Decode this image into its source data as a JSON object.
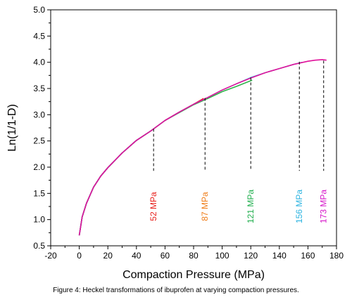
{
  "chart_data": {
    "type": "line",
    "xlabel": "Compaction Pressure (MPa)",
    "ylabel": "Ln(1/1-D)",
    "xlim": [
      -20,
      180
    ],
    "ylim": [
      0.5,
      5.0
    ],
    "x_ticks": [
      -20,
      0,
      20,
      40,
      60,
      80,
      100,
      120,
      140,
      160,
      180
    ],
    "y_ticks": [
      "0.5",
      "1.0",
      "1.5",
      "2.0",
      "2.5",
      "3.0",
      "3.5",
      "4.0",
      "4.5",
      "5.0"
    ],
    "grid": false,
    "series": [
      {
        "color": "#1f3fbf",
        "x": [
          0,
          2,
          5,
          10,
          15,
          20,
          30,
          40,
          50,
          52
        ],
        "y": [
          0.7,
          1.05,
          1.31,
          1.62,
          1.83,
          1.99,
          2.27,
          2.51,
          2.69,
          2.73
        ]
      },
      {
        "color": "#e8201c",
        "x": [
          0,
          2,
          5,
          10,
          15,
          20,
          30,
          40,
          50,
          60,
          70,
          80,
          87
        ],
        "y": [
          0.7,
          1.05,
          1.31,
          1.62,
          1.83,
          1.99,
          2.27,
          2.51,
          2.69,
          2.89,
          3.05,
          3.2,
          3.31
        ]
      },
      {
        "color": "#2fb24a",
        "x": [
          0,
          2,
          5,
          10,
          15,
          20,
          30,
          40,
          50,
          60,
          70,
          80,
          90,
          100,
          110,
          121
        ],
        "y": [
          0.7,
          1.05,
          1.31,
          1.62,
          1.83,
          1.99,
          2.27,
          2.51,
          2.69,
          2.89,
          3.04,
          3.19,
          3.31,
          3.44,
          3.54,
          3.66
        ]
      },
      {
        "color": "#4fc3e8",
        "x": [
          0,
          2,
          5,
          10,
          15,
          20,
          30,
          40,
          50,
          60,
          70,
          80,
          90,
          100,
          110,
          120,
          130,
          140,
          150,
          156
        ],
        "y": [
          0.7,
          1.05,
          1.31,
          1.62,
          1.83,
          1.99,
          2.27,
          2.51,
          2.69,
          2.89,
          3.05,
          3.2,
          3.33,
          3.47,
          3.59,
          3.71,
          3.8,
          3.88,
          3.96,
          4.0
        ]
      },
      {
        "color": "#e0119a",
        "x": [
          0,
          2,
          5,
          10,
          15,
          20,
          30,
          40,
          50,
          60,
          70,
          80,
          90,
          100,
          110,
          120,
          130,
          140,
          150,
          160,
          165,
          170,
          173
        ],
        "y": [
          0.7,
          1.05,
          1.31,
          1.62,
          1.83,
          1.99,
          2.27,
          2.51,
          2.69,
          2.89,
          3.05,
          3.2,
          3.33,
          3.47,
          3.59,
          3.7,
          3.8,
          3.88,
          3.96,
          4.02,
          4.04,
          4.05,
          4.04
        ]
      }
    ],
    "annotations": [
      {
        "label": "52 MPa",
        "x": 52,
        "y_top": 2.73,
        "color": "#e8201c"
      },
      {
        "label": "87 MPa",
        "x": 88,
        "y_top": 3.32,
        "color": "#ef7d1a"
      },
      {
        "label": "121 MPa",
        "x": 120,
        "y_top": 3.71,
        "color": "#1fae4d"
      },
      {
        "label": "156 MPa",
        "x": 154,
        "y_top": 4.01,
        "color": "#2ab3e0"
      },
      {
        "label": "173 MPa",
        "x": 171,
        "y_top": 4.03,
        "color": "#d615c9"
      }
    ]
  },
  "caption": "Figure 4: Heckel transformations of ibuprofen at varying compaction pressures."
}
